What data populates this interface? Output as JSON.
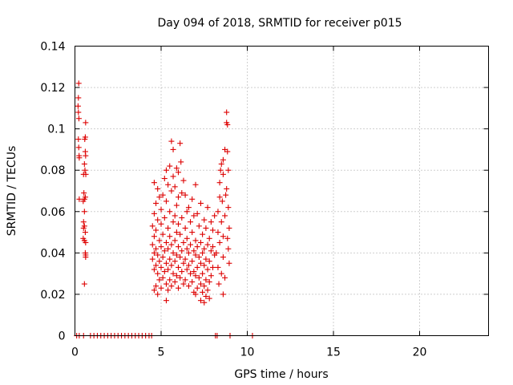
{
  "chart_data": {
    "type": "scatter",
    "title": "Day 094 of 2018, SRMTID for receiver p015",
    "xlabel": "GPS time / hours",
    "ylabel": "SRMTID / TECUs",
    "xlim": [
      0,
      24
    ],
    "ylim": [
      0,
      0.14
    ],
    "xticks": [
      0,
      5,
      10,
      15,
      20
    ],
    "xtick_labels": [
      "0",
      "5",
      "10",
      "15",
      "20"
    ],
    "yticks": [
      0,
      0.02,
      0.04,
      0.06,
      0.08,
      0.1,
      0.12,
      0.14
    ],
    "ytick_labels": [
      "0",
      "0.02",
      "0.04",
      "0.06",
      "0.08",
      "0.1",
      "0.12",
      "0.14"
    ],
    "grid": true,
    "marker": "+",
    "series": [
      {
        "name": "SRMTID",
        "color": "#dd0000",
        "points": [
          [
            0.1,
            0
          ],
          [
            0.25,
            0
          ],
          [
            0.5,
            0
          ],
          [
            0.9,
            0
          ],
          [
            1.1,
            0
          ],
          [
            1.3,
            0
          ],
          [
            1.5,
            0
          ],
          [
            1.7,
            0
          ],
          [
            1.9,
            0
          ],
          [
            2.1,
            0
          ],
          [
            2.3,
            0
          ],
          [
            2.5,
            0
          ],
          [
            2.7,
            0
          ],
          [
            2.9,
            0
          ],
          [
            3.1,
            0
          ],
          [
            3.3,
            0
          ],
          [
            3.5,
            0
          ],
          [
            3.7,
            0
          ],
          [
            3.9,
            0
          ],
          [
            4.1,
            0
          ],
          [
            4.3,
            0
          ],
          [
            4.45,
            0
          ],
          [
            8.15,
            0
          ],
          [
            8.25,
            0
          ],
          [
            9.0,
            0
          ],
          [
            10.3,
            0
          ],
          [
            0.22,
            0.122
          ],
          [
            0.2,
            0.115
          ],
          [
            0.18,
            0.111
          ],
          [
            0.2,
            0.108
          ],
          [
            0.23,
            0.105
          ],
          [
            0.2,
            0.095
          ],
          [
            0.22,
            0.091
          ],
          [
            0.24,
            0.087
          ],
          [
            0.25,
            0.086
          ],
          [
            0.25,
            0.066
          ],
          [
            0.62,
            0.103
          ],
          [
            0.6,
            0.096
          ],
          [
            0.57,
            0.095
          ],
          [
            0.6,
            0.089
          ],
          [
            0.62,
            0.087
          ],
          [
            0.55,
            0.083
          ],
          [
            0.58,
            0.08
          ],
          [
            0.63,
            0.078
          ],
          [
            0.5,
            0.078
          ],
          [
            0.52,
            0.069
          ],
          [
            0.6,
            0.067
          ],
          [
            0.55,
            0.066
          ],
          [
            0.48,
            0.065
          ],
          [
            0.55,
            0.06
          ],
          [
            0.5,
            0.055
          ],
          [
            0.55,
            0.053
          ],
          [
            0.5,
            0.052
          ],
          [
            0.6,
            0.05
          ],
          [
            0.48,
            0.047
          ],
          [
            0.55,
            0.046
          ],
          [
            0.62,
            0.045
          ],
          [
            0.6,
            0.04
          ],
          [
            0.62,
            0.039
          ],
          [
            0.62,
            0.038
          ],
          [
            0.55,
            0.025
          ],
          [
            8.8,
            0.108
          ],
          [
            8.85,
            0.102
          ],
          [
            8.8,
            0.103
          ],
          [
            8.7,
            0.09
          ],
          [
            8.85,
            0.089
          ],
          [
            8.6,
            0.085
          ],
          [
            8.5,
            0.083
          ],
          [
            8.45,
            0.08
          ],
          [
            8.9,
            0.08
          ],
          [
            8.6,
            0.078
          ],
          [
            8.4,
            0.074
          ],
          [
            8.8,
            0.071
          ],
          [
            8.75,
            0.068
          ],
          [
            8.4,
            0.067
          ],
          [
            8.55,
            0.065
          ],
          [
            8.9,
            0.062
          ],
          [
            8.3,
            0.06
          ],
          [
            8.7,
            0.058
          ],
          [
            8.5,
            0.055
          ],
          [
            8.95,
            0.052
          ],
          [
            8.3,
            0.05
          ],
          [
            8.6,
            0.048
          ],
          [
            8.85,
            0.047
          ],
          [
            8.4,
            0.045
          ],
          [
            8.9,
            0.042
          ],
          [
            8.2,
            0.04
          ],
          [
            8.6,
            0.038
          ],
          [
            8.95,
            0.035
          ],
          [
            8.3,
            0.033
          ],
          [
            8.5,
            0.03
          ],
          [
            8.7,
            0.028
          ],
          [
            8.35,
            0.025
          ],
          [
            8.6,
            0.02
          ],
          [
            5.6,
            0.094
          ],
          [
            5.7,
            0.09
          ],
          [
            6.1,
            0.093
          ],
          [
            6.15,
            0.084
          ],
          [
            5.5,
            0.082
          ],
          [
            5.9,
            0.081
          ],
          [
            5.3,
            0.08
          ],
          [
            6.0,
            0.079
          ],
          [
            5.7,
            0.077
          ],
          [
            5.2,
            0.076
          ],
          [
            6.3,
            0.075
          ],
          [
            4.6,
            0.074
          ],
          [
            5.4,
            0.073
          ],
          [
            7.0,
            0.073
          ],
          [
            5.8,
            0.072
          ],
          [
            4.8,
            0.071
          ],
          [
            5.6,
            0.07
          ],
          [
            6.2,
            0.069
          ],
          [
            5.1,
            0.068
          ],
          [
            6.4,
            0.068
          ],
          [
            4.9,
            0.067
          ],
          [
            6.0,
            0.067
          ],
          [
            6.8,
            0.066
          ],
          [
            5.3,
            0.065
          ],
          [
            4.7,
            0.064
          ],
          [
            7.3,
            0.064
          ],
          [
            5.9,
            0.063
          ],
          [
            6.6,
            0.062
          ],
          [
            5.0,
            0.061
          ],
          [
            7.7,
            0.062
          ],
          [
            5.5,
            0.06
          ],
          [
            6.5,
            0.06
          ],
          [
            7.1,
            0.059
          ],
          [
            4.6,
            0.059
          ],
          [
            5.8,
            0.058
          ],
          [
            6.9,
            0.058
          ],
          [
            8.1,
            0.058
          ],
          [
            5.2,
            0.057
          ],
          [
            6.2,
            0.057
          ],
          [
            7.5,
            0.056
          ],
          [
            4.8,
            0.056
          ],
          [
            5.7,
            0.055
          ],
          [
            6.7,
            0.055
          ],
          [
            7.9,
            0.055
          ],
          [
            5.0,
            0.054
          ],
          [
            6.0,
            0.054
          ],
          [
            7.2,
            0.053
          ],
          [
            4.5,
            0.053
          ],
          [
            5.4,
            0.052
          ],
          [
            6.4,
            0.052
          ],
          [
            7.6,
            0.052
          ],
          [
            8.0,
            0.051
          ],
          [
            4.7,
            0.051
          ],
          [
            5.9,
            0.05
          ],
          [
            6.8,
            0.05
          ],
          [
            5.1,
            0.049
          ],
          [
            6.1,
            0.049
          ],
          [
            7.4,
            0.049
          ],
          [
            4.6,
            0.048
          ],
          [
            5.5,
            0.048
          ],
          [
            6.5,
            0.047
          ],
          [
            7.8,
            0.047
          ],
          [
            4.9,
            0.046
          ],
          [
            5.8,
            0.046
          ],
          [
            7.0,
            0.046
          ],
          [
            5.3,
            0.045
          ],
          [
            6.3,
            0.045
          ],
          [
            7.3,
            0.045
          ],
          [
            4.5,
            0.044
          ],
          [
            5.6,
            0.044
          ],
          [
            6.7,
            0.044
          ],
          [
            7.7,
            0.044
          ],
          [
            5.0,
            0.043
          ],
          [
            6.0,
            0.043
          ],
          [
            7.1,
            0.043
          ],
          [
            8.0,
            0.043
          ],
          [
            4.7,
            0.042
          ],
          [
            5.4,
            0.042
          ],
          [
            6.5,
            0.042
          ],
          [
            7.5,
            0.042
          ],
          [
            5.2,
            0.041
          ],
          [
            6.2,
            0.041
          ],
          [
            6.9,
            0.041
          ],
          [
            7.9,
            0.041
          ],
          [
            4.6,
            0.04
          ],
          [
            5.7,
            0.04
          ],
          [
            6.6,
            0.04
          ],
          [
            7.4,
            0.04
          ],
          [
            4.8,
            0.039
          ],
          [
            5.9,
            0.039
          ],
          [
            7.0,
            0.039
          ],
          [
            8.1,
            0.039
          ],
          [
            5.1,
            0.038
          ],
          [
            6.1,
            0.038
          ],
          [
            7.2,
            0.038
          ],
          [
            4.5,
            0.037
          ],
          [
            5.5,
            0.037
          ],
          [
            6.4,
            0.037
          ],
          [
            7.6,
            0.037
          ],
          [
            4.9,
            0.036
          ],
          [
            5.8,
            0.036
          ],
          [
            6.8,
            0.036
          ],
          [
            7.8,
            0.036
          ],
          [
            5.3,
            0.035
          ],
          [
            6.3,
            0.035
          ],
          [
            7.3,
            0.035
          ],
          [
            4.7,
            0.034
          ],
          [
            5.6,
            0.034
          ],
          [
            6.6,
            0.034
          ],
          [
            7.5,
            0.034
          ],
          [
            5.0,
            0.033
          ],
          [
            6.0,
            0.033
          ],
          [
            7.1,
            0.033
          ],
          [
            8.0,
            0.033
          ],
          [
            4.6,
            0.032
          ],
          [
            5.4,
            0.032
          ],
          [
            6.5,
            0.032
          ],
          [
            7.7,
            0.032
          ],
          [
            5.2,
            0.031
          ],
          [
            6.2,
            0.031
          ],
          [
            6.9,
            0.031
          ],
          [
            4.8,
            0.03
          ],
          [
            5.7,
            0.03
          ],
          [
            6.7,
            0.03
          ],
          [
            7.4,
            0.03
          ],
          [
            5.9,
            0.029
          ],
          [
            7.0,
            0.029
          ],
          [
            7.9,
            0.029
          ],
          [
            5.1,
            0.028
          ],
          [
            6.1,
            0.028
          ],
          [
            7.2,
            0.028
          ],
          [
            4.9,
            0.027
          ],
          [
            5.5,
            0.027
          ],
          [
            6.4,
            0.027
          ],
          [
            7.6,
            0.027
          ],
          [
            5.8,
            0.026
          ],
          [
            6.8,
            0.026
          ],
          [
            7.8,
            0.026
          ],
          [
            5.3,
            0.025
          ],
          [
            6.3,
            0.025
          ],
          [
            7.3,
            0.025
          ],
          [
            4.7,
            0.024
          ],
          [
            5.6,
            0.024
          ],
          [
            6.6,
            0.024
          ],
          [
            7.5,
            0.024
          ],
          [
            5.0,
            0.023
          ],
          [
            6.0,
            0.023
          ],
          [
            7.1,
            0.023
          ],
          [
            4.6,
            0.022
          ],
          [
            5.4,
            0.022
          ],
          [
            7.7,
            0.022
          ],
          [
            6.9,
            0.021
          ],
          [
            7.4,
            0.021
          ],
          [
            4.8,
            0.02
          ],
          [
            7.0,
            0.02
          ],
          [
            7.6,
            0.019
          ],
          [
            7.8,
            0.018
          ],
          [
            5.3,
            0.017
          ],
          [
            7.5,
            0.016
          ],
          [
            7.3,
            0.017
          ]
        ]
      }
    ]
  }
}
